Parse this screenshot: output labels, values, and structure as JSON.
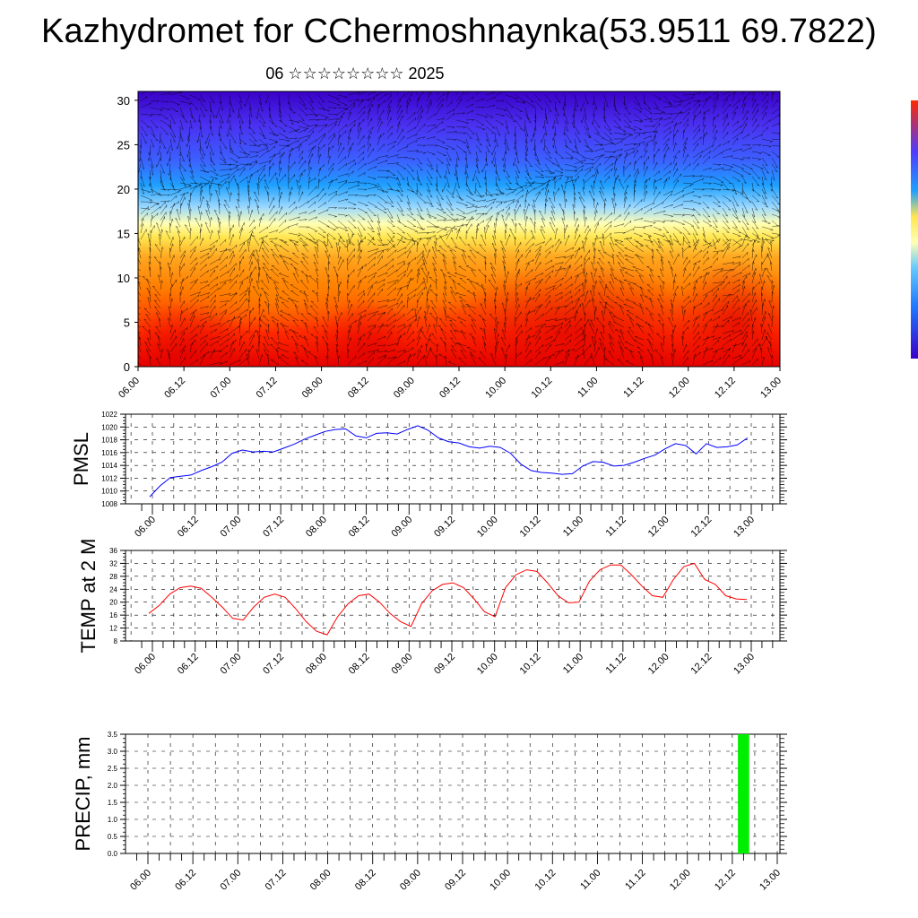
{
  "title": "Kazhydromet for CChermoshnaynka(53.9511 69.7822)",
  "subtitle": "06 ☆☆☆☆☆☆☆☆ 2025",
  "time_labels": [
    "06.00",
    "06.12",
    "07.00",
    "07.12",
    "08.00",
    "08.12",
    "09.00",
    "09.12",
    "10.00",
    "10.12",
    "11.00",
    "11.12",
    "12.00",
    "12.12",
    "13.00"
  ],
  "colors": {
    "pmsl_line": "#0000ff",
    "temp_line": "#ff0000",
    "precip_bar": "#00ee00",
    "grid": "#000000"
  },
  "chart_data": [
    {
      "type": "heatmap",
      "title": "",
      "xlabel": "",
      "ylabel": "",
      "ylim": [
        0,
        31
      ],
      "y_ticks": [
        0,
        5,
        10,
        15,
        20,
        25,
        30
      ],
      "x_tick_labels": [
        "06.00",
        "06.12",
        "07.00",
        "07.12",
        "08.00",
        "08.12",
        "09.00",
        "09.12",
        "10.00",
        "10.12",
        "11.00",
        "11.12",
        "12.00",
        "12.12",
        "13.00"
      ],
      "colormap": [
        "#3a00c8",
        "#4d3cff",
        "#1e78ff",
        "#1ea0ff",
        "#64c8ff",
        "#b4e6ff",
        "#ffffb4",
        "#ffe650",
        "#ffbe28",
        "#ff9614",
        "#ff6400",
        "#ff2800",
        "#e60000"
      ],
      "overlay": "wind vectors (streamlines)"
    },
    {
      "type": "line",
      "ylabel": "PMSL",
      "ylim": [
        1008,
        1022
      ],
      "y_ticks": [
        1008,
        1010,
        1012,
        1014,
        1016,
        1018,
        1020,
        1022
      ],
      "x_tick_labels": [
        "06.00",
        "06.12",
        "07.00",
        "07.12",
        "08.00",
        "08.12",
        "09.00",
        "09.12",
        "10.00",
        "10.12",
        "11.00",
        "11.12",
        "12.00",
        "12.12",
        "13.00"
      ],
      "series": [
        {
          "values": [
            1009.1,
            1010.8,
            1012.1,
            1012.3,
            1012.5,
            1013.2,
            1013.8,
            1014.5,
            1015.9,
            1016.4,
            1016.1,
            1016.2,
            1016.1,
            1016.7,
            1017.3,
            1018.1,
            1018.7,
            1019.3,
            1019.6,
            1019.7,
            1018.6,
            1018.3,
            1019.0,
            1019.1,
            1018.9,
            1019.6,
            1020.2,
            1019.5,
            1018.3,
            1017.7,
            1017.5,
            1016.9,
            1016.7,
            1017.0,
            1016.8,
            1015.9,
            1014.2,
            1013.2,
            1012.9,
            1012.8,
            1012.6,
            1012.7,
            1013.9,
            1014.6,
            1014.5,
            1013.9,
            1014.0,
            1014.5,
            1015.1,
            1015.6,
            1016.6,
            1017.4,
            1017.1,
            1015.8,
            1017.4,
            1016.8,
            1016.9,
            1017.2,
            1018.3
          ]
        }
      ]
    },
    {
      "type": "line",
      "ylabel": "TEMP at 2 M",
      "ylim": [
        8,
        36
      ],
      "y_ticks": [
        8,
        12,
        16,
        20,
        24,
        28,
        32,
        36
      ],
      "x_tick_labels": [
        "06.00",
        "06.12",
        "07.00",
        "07.12",
        "08.00",
        "08.12",
        "09.00",
        "09.12",
        "10.00",
        "10.12",
        "11.00",
        "11.12",
        "12.00",
        "12.12",
        "13.00"
      ],
      "series": [
        {
          "values": [
            16.5,
            19.0,
            22.5,
            24.5,
            25.0,
            24.3,
            21.5,
            18.5,
            15.0,
            14.5,
            18.5,
            21.5,
            22.5,
            21.5,
            18.0,
            14.0,
            11.0,
            9.9,
            15.5,
            19.5,
            22.0,
            22.5,
            20.0,
            16.5,
            14.0,
            12.5,
            19.5,
            23.5,
            25.5,
            26.0,
            24.5,
            21.0,
            17.0,
            15.5,
            24.5,
            28.5,
            30.0,
            29.5,
            26.0,
            22.0,
            19.8,
            20.0,
            26.5,
            30.0,
            31.5,
            31.5,
            28.5,
            25.0,
            22.0,
            21.5,
            27.0,
            31.0,
            32.0,
            27.0,
            25.5,
            22.0,
            21.0,
            20.8
          ]
        }
      ]
    },
    {
      "type": "bar",
      "ylabel": "PRECIP, mm",
      "ylim": [
        0,
        3.5
      ],
      "y_ticks": [
        0.0,
        0.5,
        1.0,
        1.5,
        2.0,
        2.5,
        3.0,
        3.5
      ],
      "x_tick_labels": [
        "06.00",
        "06.12",
        "07.00",
        "07.12",
        "08.00",
        "08.12",
        "09.00",
        "09.12",
        "10.00",
        "10.12",
        "11.00",
        "11.12",
        "12.00",
        "12.12",
        "13.00"
      ],
      "bars": [
        {
          "x_step": 53,
          "value": 3.5
        }
      ]
    }
  ]
}
